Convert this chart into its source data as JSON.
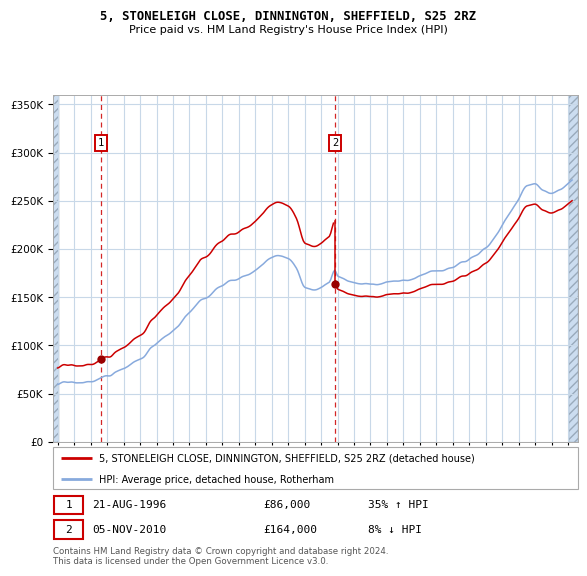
{
  "title": "5, STONELEIGH CLOSE, DINNINGTON, SHEFFIELD, S25 2RZ",
  "subtitle": "Price paid vs. HM Land Registry's House Price Index (HPI)",
  "legend_line1": "5, STONELEIGH CLOSE, DINNINGTON, SHEFFIELD, S25 2RZ (detached house)",
  "legend_line2": "HPI: Average price, detached house, Rotherham",
  "annotation1_date": "21-AUG-1996",
  "annotation1_price": "£86,000",
  "annotation1_hpi": "35% ↑ HPI",
  "annotation2_date": "05-NOV-2010",
  "annotation2_price": "£164,000",
  "annotation2_hpi": "8% ↓ HPI",
  "footer": "Contains HM Land Registry data © Crown copyright and database right 2024.\nThis data is licensed under the Open Government Licence v3.0.",
  "sale1_year": 1996.64,
  "sale1_price": 86000,
  "sale2_year": 2010.84,
  "sale2_price": 164000,
  "red_line_color": "#cc0000",
  "blue_line_color": "#88aadd",
  "hatch_color": "#ccddf0",
  "plot_bg_color": "#e8f0f8",
  "white_bg": "#ffffff",
  "grid_color": "#c8d8e8",
  "vline_color": "#cc0000",
  "ann_box_color": "#cc0000",
  "ylim_max": 360000,
  "yticks": [
    0,
    50000,
    100000,
    150000,
    200000,
    250000,
    300000,
    350000
  ],
  "xmin": 1993.7,
  "xmax": 2025.6,
  "data_xstart": 1994.0,
  "data_xend": 2025.3
}
